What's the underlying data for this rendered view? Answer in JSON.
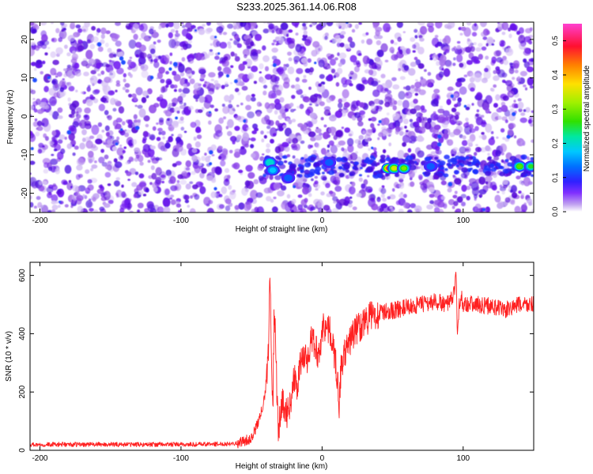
{
  "title": "S233.2025.361.14.06.R08",
  "chart_data": [
    {
      "type": "heatmap",
      "title": "",
      "xlabel": "Height of straight line (km)",
      "ylabel": "Frequency (Hz)",
      "xlim": [
        -207,
        150
      ],
      "ylim": [
        -25,
        24.5
      ],
      "xticks": [
        -200,
        -100,
        0,
        100
      ],
      "yticks": [
        -20,
        -10,
        0,
        10,
        20
      ],
      "colorbar": {
        "label": "Normalized spectral amplitude",
        "range": [
          0,
          0.55
        ],
        "ticks": [
          0.0,
          0.1,
          0.2,
          0.3,
          0.4,
          0.5
        ],
        "colors": [
          "#ffffff",
          "#a070e0",
          "#7000ff",
          "#1040ff",
          "#00c0ff",
          "#00e080",
          "#60e000",
          "#ffe000",
          "#ff6000",
          "#ff0040",
          "#ff40c0"
        ]
      },
      "signal_band": {
        "frequency_hz": -13,
        "from_km": -40,
        "to_km": 150,
        "peaks": [
          {
            "x": -37,
            "y": -12,
            "value": 0.2
          },
          {
            "x": -35,
            "y": -14,
            "value": 0.18
          },
          {
            "x": -24,
            "y": -16,
            "value": 0.12
          },
          {
            "x": 5,
            "y": -12,
            "value": 0.12
          },
          {
            "x": 47,
            "y": -13.5,
            "value": 0.45
          },
          {
            "x": 51,
            "y": -13.5,
            "value": 0.35
          },
          {
            "x": 58,
            "y": -13.5,
            "value": 0.3
          },
          {
            "x": 77,
            "y": -13,
            "value": 0.12
          },
          {
            "x": 140,
            "y": -13,
            "value": 0.28
          },
          {
            "x": 148,
            "y": -13,
            "value": 0.25
          }
        ]
      }
    },
    {
      "type": "line",
      "title": "",
      "xlabel": "Height of straight line (km)",
      "ylabel": "SNR (10 * v/v)",
      "xlim": [
        -207,
        150
      ],
      "ylim": [
        0,
        645
      ],
      "xticks": [
        -200,
        -100,
        0,
        100
      ],
      "yticks": [
        0,
        200,
        400,
        600
      ],
      "series": [
        {
          "color": "#ff2020",
          "x": [
            -207,
            -180,
            -150,
            -120,
            -90,
            -70,
            -60,
            -50,
            -45,
            -42,
            -40,
            -38,
            -37,
            -36,
            -35,
            -34,
            -33,
            -32,
            -31,
            -30,
            -28,
            -25,
            -22,
            -20,
            -18,
            -15,
            -12,
            -10,
            -8,
            -5,
            -2,
            0,
            3,
            6,
            9,
            11,
            12,
            13,
            14,
            16,
            18,
            20,
            25,
            30,
            35,
            40,
            50,
            60,
            70,
            80,
            90,
            94,
            95,
            96,
            97,
            99,
            100,
            110,
            120,
            130,
            140,
            150
          ],
          "values": [
            20,
            20,
            20,
            20,
            20,
            22,
            25,
            40,
            100,
            150,
            200,
            350,
            615,
            380,
            100,
            480,
            400,
            200,
            80,
            100,
            180,
            120,
            180,
            250,
            210,
            300,
            340,
            300,
            380,
            360,
            320,
            420,
            430,
            400,
            320,
            250,
            150,
            250,
            300,
            330,
            350,
            380,
            420,
            440,
            460,
            470,
            480,
            490,
            500,
            510,
            500,
            540,
            630,
            370,
            500,
            520,
            505,
            500,
            495,
            480,
            500,
            500
          ]
        }
      ]
    }
  ]
}
